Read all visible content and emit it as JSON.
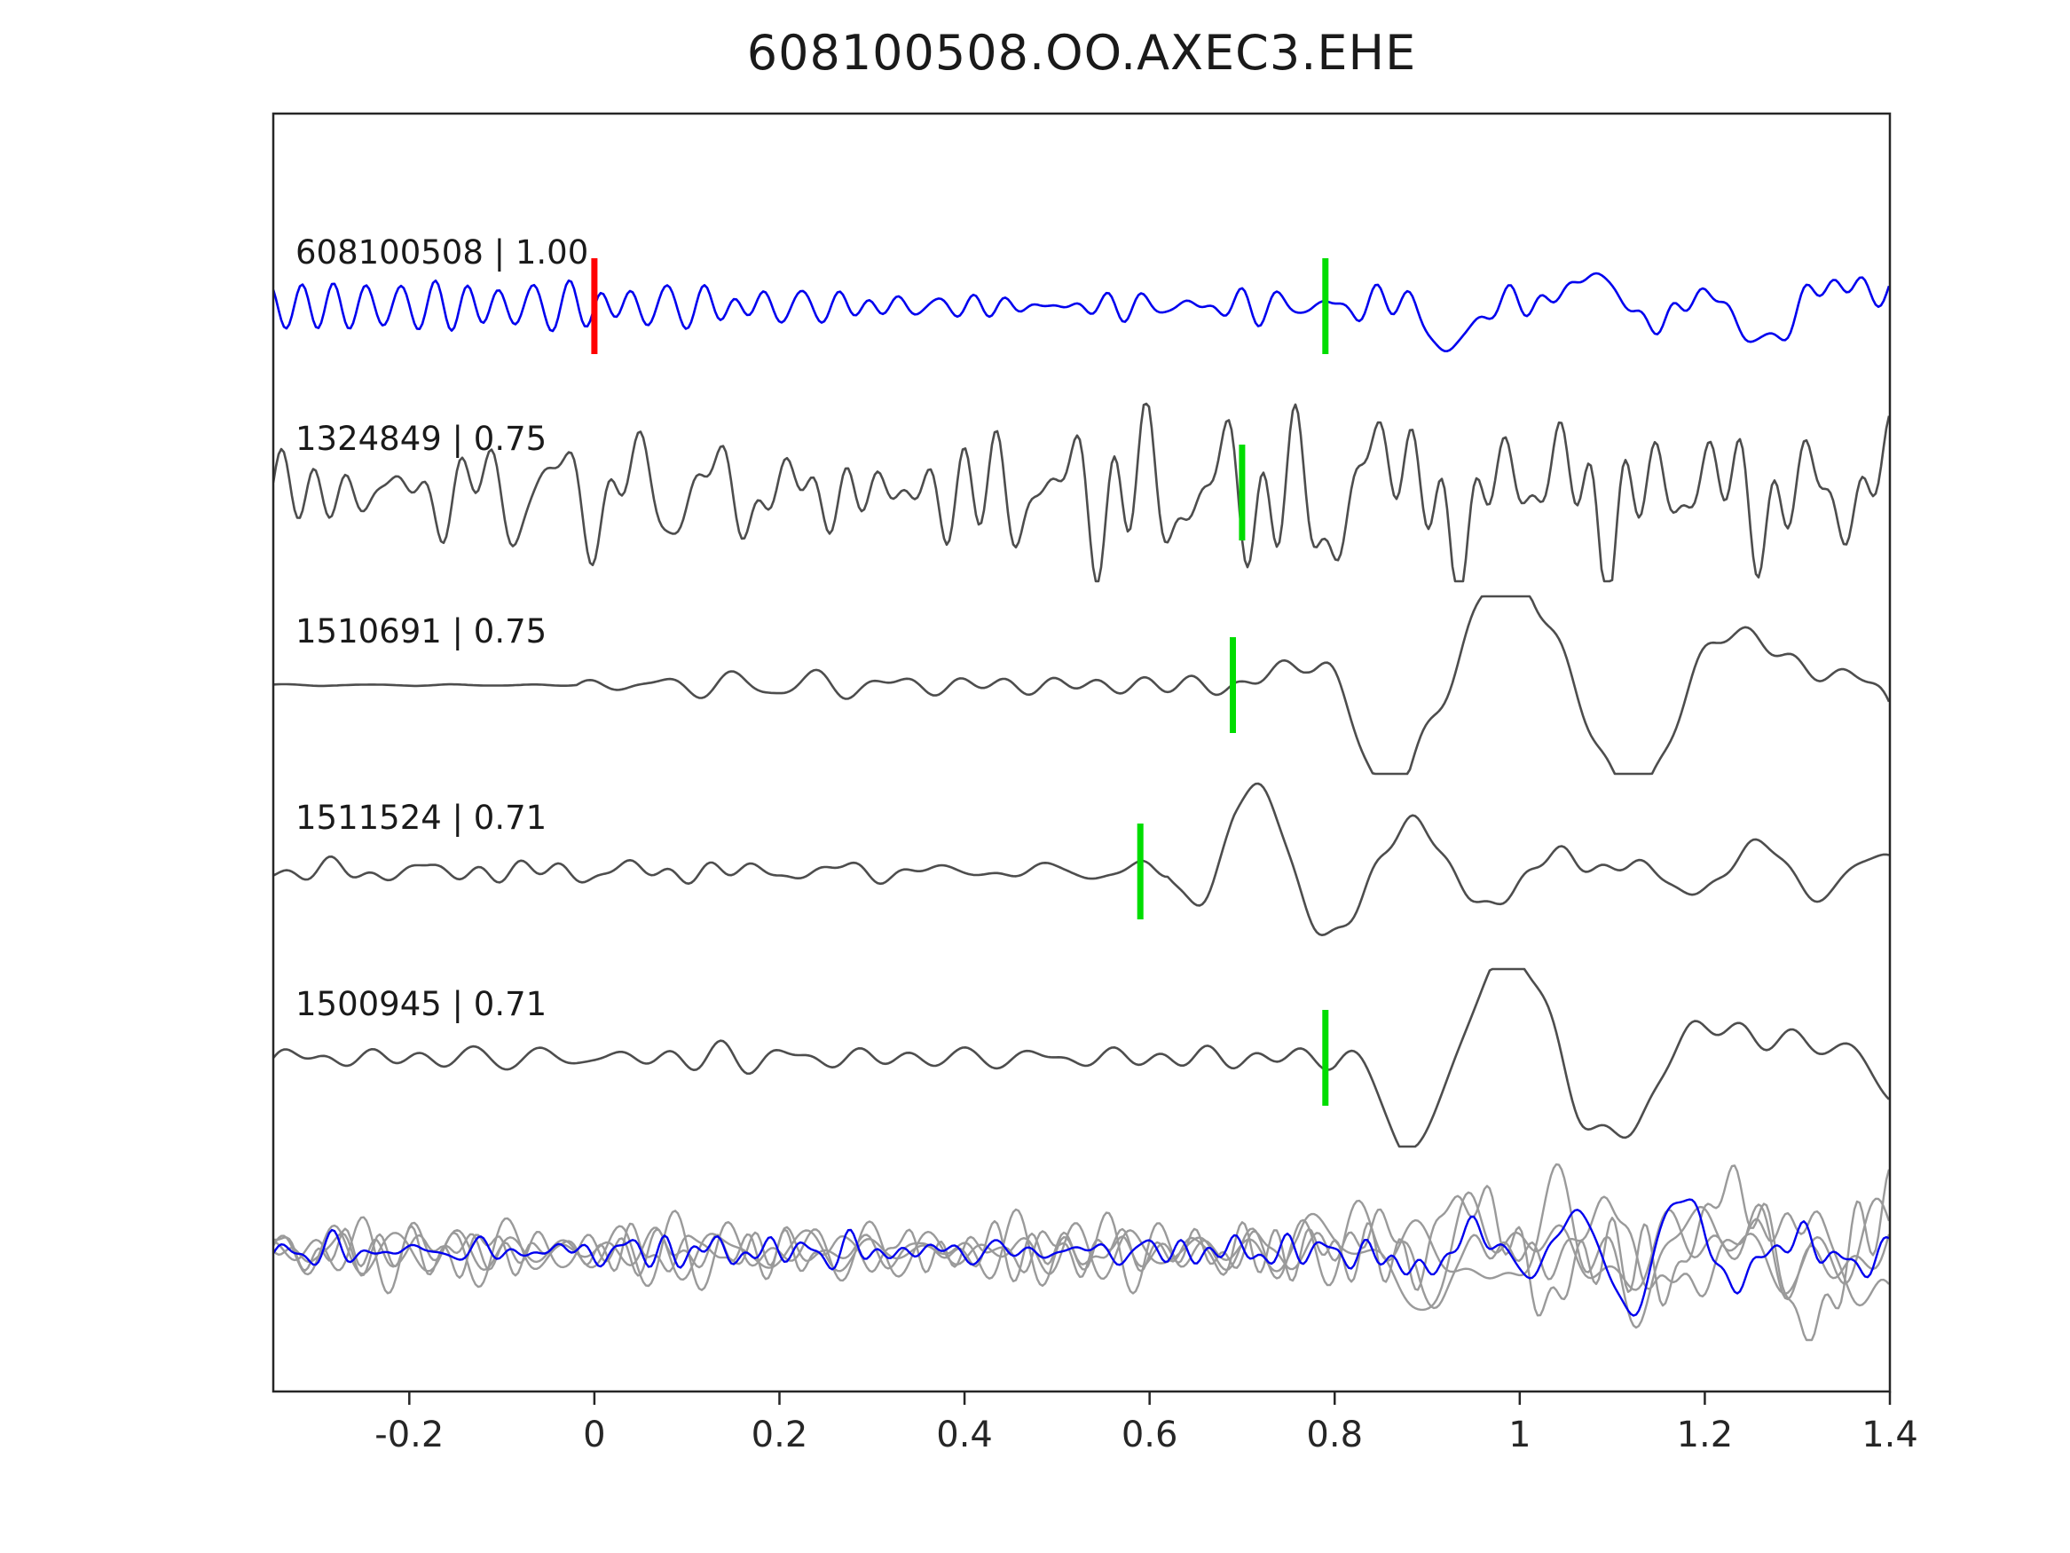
{
  "title": "608100508.OO.AXEC3.EHE",
  "chart_data": {
    "type": "line",
    "title": "608100508.OO.AXEC3.EHE",
    "xlabel": "",
    "ylabel": "",
    "xlim": [
      -0.347,
      1.4
    ],
    "grid": false,
    "legend": "none",
    "x_ticks": [
      {
        "value": -0.2,
        "label": "-0.2"
      },
      {
        "value": 0,
        "label": "0"
      },
      {
        "value": 0.2,
        "label": "0.2"
      },
      {
        "value": 0.4,
        "label": "0.4"
      },
      {
        "value": 0.6,
        "label": "0.6"
      },
      {
        "value": 0.8,
        "label": "0.8"
      },
      {
        "value": 1,
        "label": "1"
      },
      {
        "value": 1.2,
        "label": "1.2"
      },
      {
        "value": 1.4,
        "label": "1.4"
      }
    ],
    "colors": {
      "template_trace": "#0000ee",
      "detection_trace": "#4d4d4d",
      "overlay_gray": "#9a9a9a",
      "pick_marker": "#00dd00",
      "origin_marker": "#ff0000",
      "axis": "#262626"
    },
    "traces": [
      {
        "id": "608100508",
        "correlation": "1.00",
        "label": "608100508 | 1.00",
        "color": "#0000ee",
        "row": 0,
        "seed": 101,
        "markers": [
          {
            "name": "origin-marker",
            "x": 0.0,
            "color": "#ff0000"
          },
          {
            "name": "pick-marker",
            "x": 0.79,
            "color": "#00dd00"
          }
        ],
        "noise_amp": 17,
        "noise_freq": 24,
        "signal_amp": 78,
        "signal_freq": 5.5,
        "onset": 0.82,
        "decay": 1.5
      },
      {
        "id": "1324849",
        "correlation": "0.75",
        "label": "1324849 | 0.75",
        "color": "#4d4d4d",
        "row": 1,
        "seed": 202,
        "markers": [
          {
            "name": "pick-marker",
            "x": 0.7,
            "color": "#00dd00"
          }
        ],
        "noise_amp": 55,
        "noise_freq": 21,
        "signal_amp": 42,
        "signal_freq": 9,
        "onset": 0.72,
        "decay": 1.2
      },
      {
        "id": "1510691",
        "correlation": "0.75",
        "label": "1510691 | 0.75",
        "color": "#4d4d4d",
        "row": 2,
        "seed": 303,
        "markers": [
          {
            "name": "pick-marker",
            "x": 0.69,
            "color": "#00dd00"
          }
        ],
        "noise_amp": 13,
        "noise_freq": 15,
        "signal_amp": 95,
        "signal_freq": 4.5,
        "onset": 0.7,
        "decay": 1.0,
        "quiet_until": -0.02,
        "quiet_scale": 0.12
      },
      {
        "id": "1511524",
        "correlation": "0.71",
        "label": "1511524 | 0.71",
        "color": "#4d4d4d",
        "row": 3,
        "seed": 404,
        "markers": [
          {
            "name": "pick-marker",
            "x": 0.59,
            "color": "#00dd00"
          }
        ],
        "noise_amp": 9,
        "noise_freq": 17,
        "signal_amp": 82,
        "signal_freq": 5.5,
        "onset": 0.62,
        "decay": 1.1
      },
      {
        "id": "1500945",
        "correlation": "0.71",
        "label": "1500945 | 0.71",
        "color": "#4d4d4d",
        "row": 4,
        "seed": 505,
        "markers": [
          {
            "name": "pick-marker",
            "x": 0.79,
            "color": "#00dd00"
          }
        ],
        "noise_amp": 10,
        "noise_freq": 14,
        "signal_amp": 90,
        "signal_freq": 4.5,
        "onset": 0.8,
        "decay": 1.0
      }
    ],
    "overlay_traces": [
      {
        "id": "overlay-gray-1",
        "color": "#9a9a9a",
        "row": 5,
        "seed": 611,
        "noise_amp": 30,
        "noise_freq": 19,
        "signal_amp": 62,
        "signal_freq": 6,
        "onset": 0.78,
        "decay": 1.1
      },
      {
        "id": "overlay-gray-2",
        "color": "#9a9a9a",
        "row": 5,
        "seed": 622,
        "noise_amp": 26,
        "noise_freq": 23,
        "signal_amp": 70,
        "signal_freq": 5,
        "onset": 0.8,
        "decay": 1.0
      },
      {
        "id": "overlay-gray-3",
        "color": "#9a9a9a",
        "row": 5,
        "seed": 633,
        "noise_amp": 28,
        "noise_freq": 16,
        "signal_amp": 58,
        "signal_freq": 6.5,
        "onset": 0.76,
        "decay": 1.2
      },
      {
        "id": "overlay-gray-4",
        "color": "#9a9a9a",
        "row": 5,
        "seed": 644,
        "noise_amp": 22,
        "noise_freq": 27,
        "signal_amp": 55,
        "signal_freq": 7,
        "onset": 0.8,
        "decay": 1.1
      },
      {
        "id": "overlay-template-blue",
        "color": "#0000ee",
        "row": 5,
        "seed": 655,
        "noise_amp": 13,
        "noise_freq": 26,
        "signal_amp": 52,
        "signal_freq": 7,
        "onset": 0.8,
        "decay": 1.2
      }
    ]
  }
}
